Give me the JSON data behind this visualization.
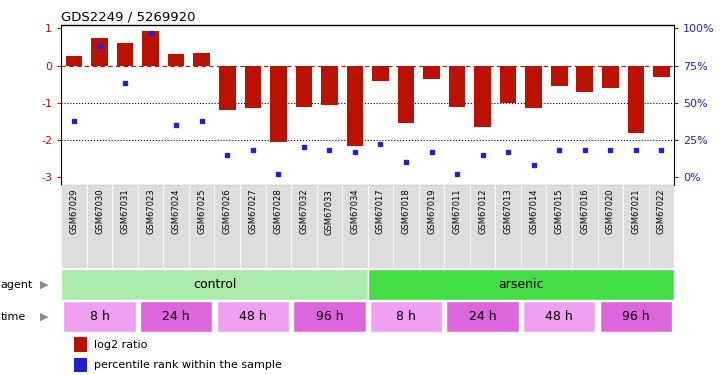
{
  "title": "GDS2249 / 5269920",
  "samples": [
    "GSM67029",
    "GSM67030",
    "GSM67031",
    "GSM67023",
    "GSM67024",
    "GSM67025",
    "GSM67026",
    "GSM67027",
    "GSM67028",
    "GSM67032",
    "GSM67033",
    "GSM67034",
    "GSM67017",
    "GSM67018",
    "GSM67019",
    "GSM67011",
    "GSM67012",
    "GSM67013",
    "GSM67014",
    "GSM67015",
    "GSM67016",
    "GSM67020",
    "GSM67021",
    "GSM67022"
  ],
  "log2_ratio": [
    0.25,
    0.75,
    0.6,
    0.92,
    0.3,
    0.35,
    -1.2,
    -1.15,
    -2.05,
    -1.1,
    -1.05,
    -2.15,
    -0.4,
    -1.55,
    -0.35,
    -1.1,
    -1.65,
    -1.0,
    -1.15,
    -0.55,
    -0.7,
    -0.6,
    -1.8,
    -0.3
  ],
  "percentile_vals": [
    38,
    88,
    63,
    97,
    35,
    38,
    15,
    18,
    2,
    20,
    18,
    17,
    22,
    10,
    17,
    2,
    15,
    17,
    8,
    18,
    18,
    18,
    18,
    18
  ],
  "agent_groups": [
    {
      "label": "control",
      "start": 0,
      "end": 12,
      "color": "#aaeaaa"
    },
    {
      "label": "arsenic",
      "start": 12,
      "end": 24,
      "color": "#44dd44"
    }
  ],
  "time_groups": [
    {
      "label": "8 h",
      "start": 0,
      "end": 3,
      "color": "#f0a0f0"
    },
    {
      "label": "24 h",
      "start": 3,
      "end": 6,
      "color": "#dd66dd"
    },
    {
      "label": "48 h",
      "start": 6,
      "end": 9,
      "color": "#f0a0f0"
    },
    {
      "label": "96 h",
      "start": 9,
      "end": 12,
      "color": "#dd66dd"
    },
    {
      "label": "8 h",
      "start": 12,
      "end": 15,
      "color": "#f0a0f0"
    },
    {
      "label": "24 h",
      "start": 15,
      "end": 18,
      "color": "#dd66dd"
    },
    {
      "label": "48 h",
      "start": 18,
      "end": 21,
      "color": "#f0a0f0"
    },
    {
      "label": "96 h",
      "start": 21,
      "end": 24,
      "color": "#dd66dd"
    }
  ],
  "bar_color": "#bb1100",
  "dot_color": "#2222cc",
  "ylim": [
    -3.2,
    1.1
  ],
  "yticks_left": [
    1,
    0,
    -1,
    -2,
    -3
  ],
  "yticks_right_labels": [
    "100%",
    "75%",
    "50%",
    "25%",
    "0%"
  ],
  "right_axis_color": "#2222cc"
}
